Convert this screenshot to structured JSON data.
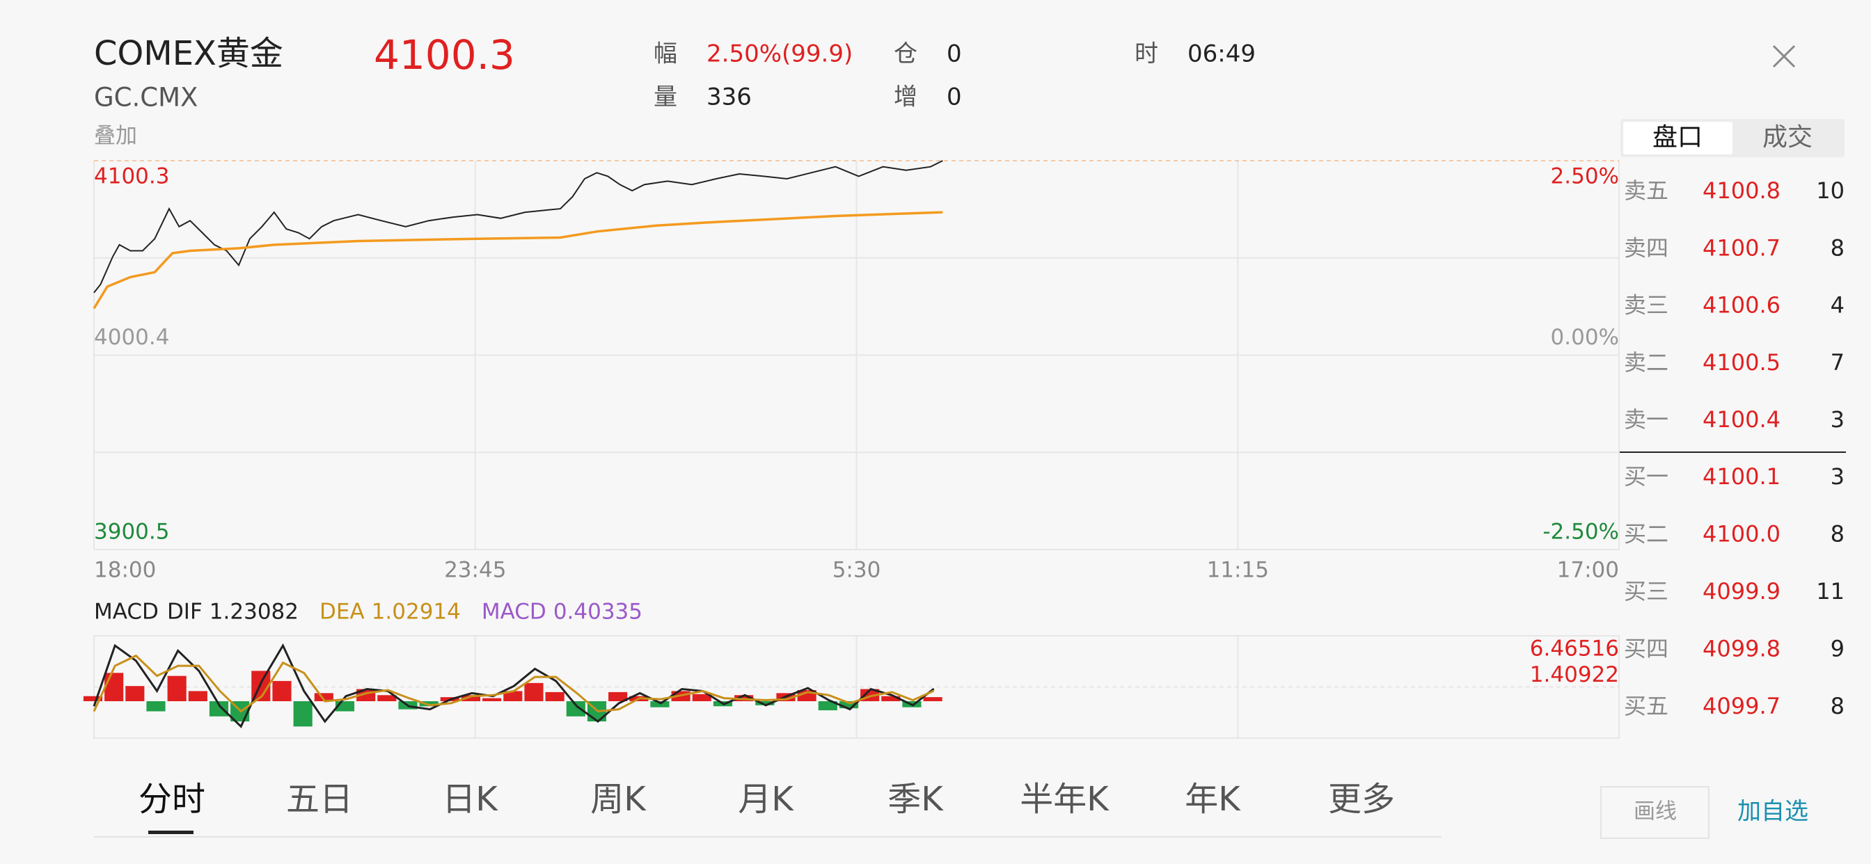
{
  "header": {
    "name": "COMEX黄金",
    "code": "GC.CMX",
    "price": "4100.3",
    "overlay": "叠加",
    "stats": [
      {
        "label": "幅",
        "value": "2.50%(99.9)"
      },
      {
        "label": "量",
        "value": "336"
      },
      {
        "label": "仓",
        "value": "0"
      },
      {
        "label": "增",
        "value": "0"
      },
      {
        "label": "时",
        "value": "06:49"
      }
    ]
  },
  "chart_data": [
    {
      "type": "line",
      "xlim": [
        0,
        1380
      ],
      "xticks": [
        {
          "value": 0,
          "label": "18:00"
        },
        {
          "value": 345,
          "label": "23:45"
        },
        {
          "value": 690,
          "label": "5:30"
        },
        {
          "value": 1035,
          "label": "11:15"
        },
        {
          "value": 1380,
          "label": "17:00"
        }
      ],
      "ylim": [
        3900.5,
        4100.3
      ],
      "yticks": [
        4100.3,
        4000.4,
        3900.5
      ],
      "ygrid": [
        4050.35,
        3950.45
      ],
      "y2lim": [
        -2.5,
        2.5
      ],
      "y2ticks": [
        {
          "value": 2.5,
          "label": "2.50%"
        },
        {
          "value": 0,
          "label": "0.00%"
        },
        {
          "value": -2.5,
          "label": "-2.50%"
        }
      ],
      "tick_colors": [
        "#e02020",
        "#999999",
        "#1f8a3c"
      ],
      "grid": true,
      "series": [
        {
          "color": "#222222",
          "x": [
            0,
            6,
            17,
            23,
            33,
            44,
            55,
            68,
            77,
            87,
            98,
            109,
            120,
            131,
            141,
            152,
            163,
            174,
            185,
            195,
            206,
            217,
            239,
            260,
            282,
            303,
            325,
            347,
            368,
            390,
            411,
            422,
            433,
            444,
            455,
            465,
            476,
            487,
            498,
            519,
            541,
            563,
            584,
            606,
            627,
            649,
            671,
            692,
            714,
            735,
            757,
            768
          ],
          "values": [
            4032.5,
            4036.8,
            4051.0,
            4057.1,
            4054.0,
            4054.0,
            4060.2,
            4075.6,
            4066.4,
            4069.5,
            4063.3,
            4057.1,
            4054.0,
            4046.6,
            4060.2,
            4066.4,
            4073.8,
            4065.2,
            4063.3,
            4060.2,
            4066.4,
            4069.5,
            4072.6,
            4069.5,
            4066.4,
            4069.5,
            4071.3,
            4072.6,
            4070.7,
            4073.8,
            4075.0,
            4075.6,
            4081.8,
            4091.0,
            4094.1,
            4092.3,
            4088.0,
            4084.9,
            4088.0,
            4089.8,
            4088.0,
            4091.0,
            4093.5,
            4092.3,
            4091.0,
            4094.1,
            4097.2,
            4092.3,
            4097.2,
            4095.4,
            4097.2,
            4100.3
          ]
        },
        {
          "color": "#f39a1e",
          "x": [
            0,
            12,
            33,
            55,
            71,
            87,
            131,
            163,
            239,
            347,
            422,
            455,
            509,
            563,
            671,
            768
          ],
          "values": [
            4024.4,
            4035.6,
            4040.5,
            4043.0,
            4052.8,
            4054.0,
            4055.3,
            4057.1,
            4059.0,
            4060.2,
            4060.8,
            4063.9,
            4067.0,
            4068.8,
            4071.9,
            4073.8
          ]
        }
      ]
    },
    {
      "type": "macd",
      "title": "MACD",
      "xlim": [
        0,
        1380
      ],
      "ylim": [
        -3.64672,
        6.46516
      ],
      "yticks": [
        6.46516,
        1.40922
      ],
      "ytick_color": "#e02020",
      "x": [
        0,
        19,
        38,
        57,
        76,
        95,
        114,
        133,
        152,
        171,
        190,
        209,
        228,
        247,
        266,
        285,
        304,
        323,
        342,
        361,
        380,
        399,
        418,
        437,
        456,
        475,
        494,
        513,
        532,
        551,
        570,
        589,
        608,
        627,
        646,
        665,
        684,
        703,
        722,
        741,
        760
      ],
      "series": [
        {
          "name": "DIF",
          "color": "#222222",
          "last": 1.23082,
          "values": [
            -0.5,
            5.5,
            4.0,
            1.0,
            5.0,
            3.0,
            -0.5,
            -2.5,
            2.0,
            5.5,
            1.0,
            -2.0,
            0.5,
            1.2,
            1.0,
            -0.5,
            -0.8,
            0.2,
            0.8,
            0.5,
            1.5,
            3.2,
            2.0,
            -0.5,
            -2.0,
            -0.2,
            0.8,
            -0.2,
            1.2,
            1.0,
            -0.3,
            0.6,
            -0.4,
            0.5,
            1.3,
            0.1,
            -0.8,
            1.2,
            0.6,
            -0.4,
            1.23082
          ]
        },
        {
          "name": "DEA",
          "color": "#c8901a",
          "last": 1.02914,
          "values": [
            -1.0,
            3.5,
            4.5,
            2.5,
            3.5,
            3.5,
            1.0,
            -1.0,
            0.5,
            3.8,
            2.8,
            0,
            0.2,
            0.8,
            1.1,
            0.3,
            -0.4,
            -0.2,
            0.5,
            0.6,
            1.0,
            2.4,
            2.4,
            0.8,
            -1.0,
            -0.8,
            0.3,
            0.2,
            0.6,
            1.0,
            0.3,
            0.2,
            0.1,
            0.2,
            0.9,
            0.6,
            -0.2,
            0.5,
            0.9,
            0.1,
            1.02914
          ]
        },
        {
          "name": "MACD",
          "color": "#9b59c8",
          "last": 0.40335,
          "up_color": "#e02020",
          "down_color": "#22a04a",
          "values": [
            0.5,
            2.8,
            1.5,
            -1.0,
            2.5,
            1.0,
            -1.5,
            -2.0,
            3.0,
            2.0,
            -2.5,
            0.8,
            -1.0,
            1.2,
            0.6,
            -0.8,
            -0.5,
            0.4,
            0.6,
            0.3,
            1.0,
            1.8,
            0.9,
            -1.5,
            -2.0,
            0.9,
            0.5,
            -0.6,
            1.0,
            0.7,
            -0.5,
            0.6,
            -0.4,
            0.8,
            1.1,
            -0.9,
            -0.7,
            1.2,
            0.5,
            -0.6,
            0.40335
          ]
        }
      ]
    }
  ],
  "order_book": {
    "tabs": [
      "盘口",
      "成交"
    ],
    "rows": [
      {
        "label": "卖五",
        "price": "4100.8",
        "volume": "10"
      },
      {
        "label": "卖四",
        "price": "4100.7",
        "volume": "8"
      },
      {
        "label": "卖三",
        "price": "4100.6",
        "volume": "4"
      },
      {
        "label": "卖二",
        "price": "4100.5",
        "volume": "7"
      },
      {
        "label": "卖一",
        "price": "4100.4",
        "volume": "3"
      },
      {
        "label": "买一",
        "price": "4100.1",
        "volume": "3"
      },
      {
        "label": "买二",
        "price": "4100.0",
        "volume": "8"
      },
      {
        "label": "买三",
        "price": "4099.9",
        "volume": "11"
      },
      {
        "label": "买四",
        "price": "4099.8",
        "volume": "9"
      },
      {
        "label": "买五",
        "price": "4099.7",
        "volume": "8"
      }
    ]
  },
  "tabs": [
    "分时",
    "五日",
    "日K",
    "周K",
    "月K",
    "季K",
    "半年K",
    "年K",
    "更多"
  ],
  "buttons": {
    "draw": "画线",
    "watch": "加自选"
  }
}
